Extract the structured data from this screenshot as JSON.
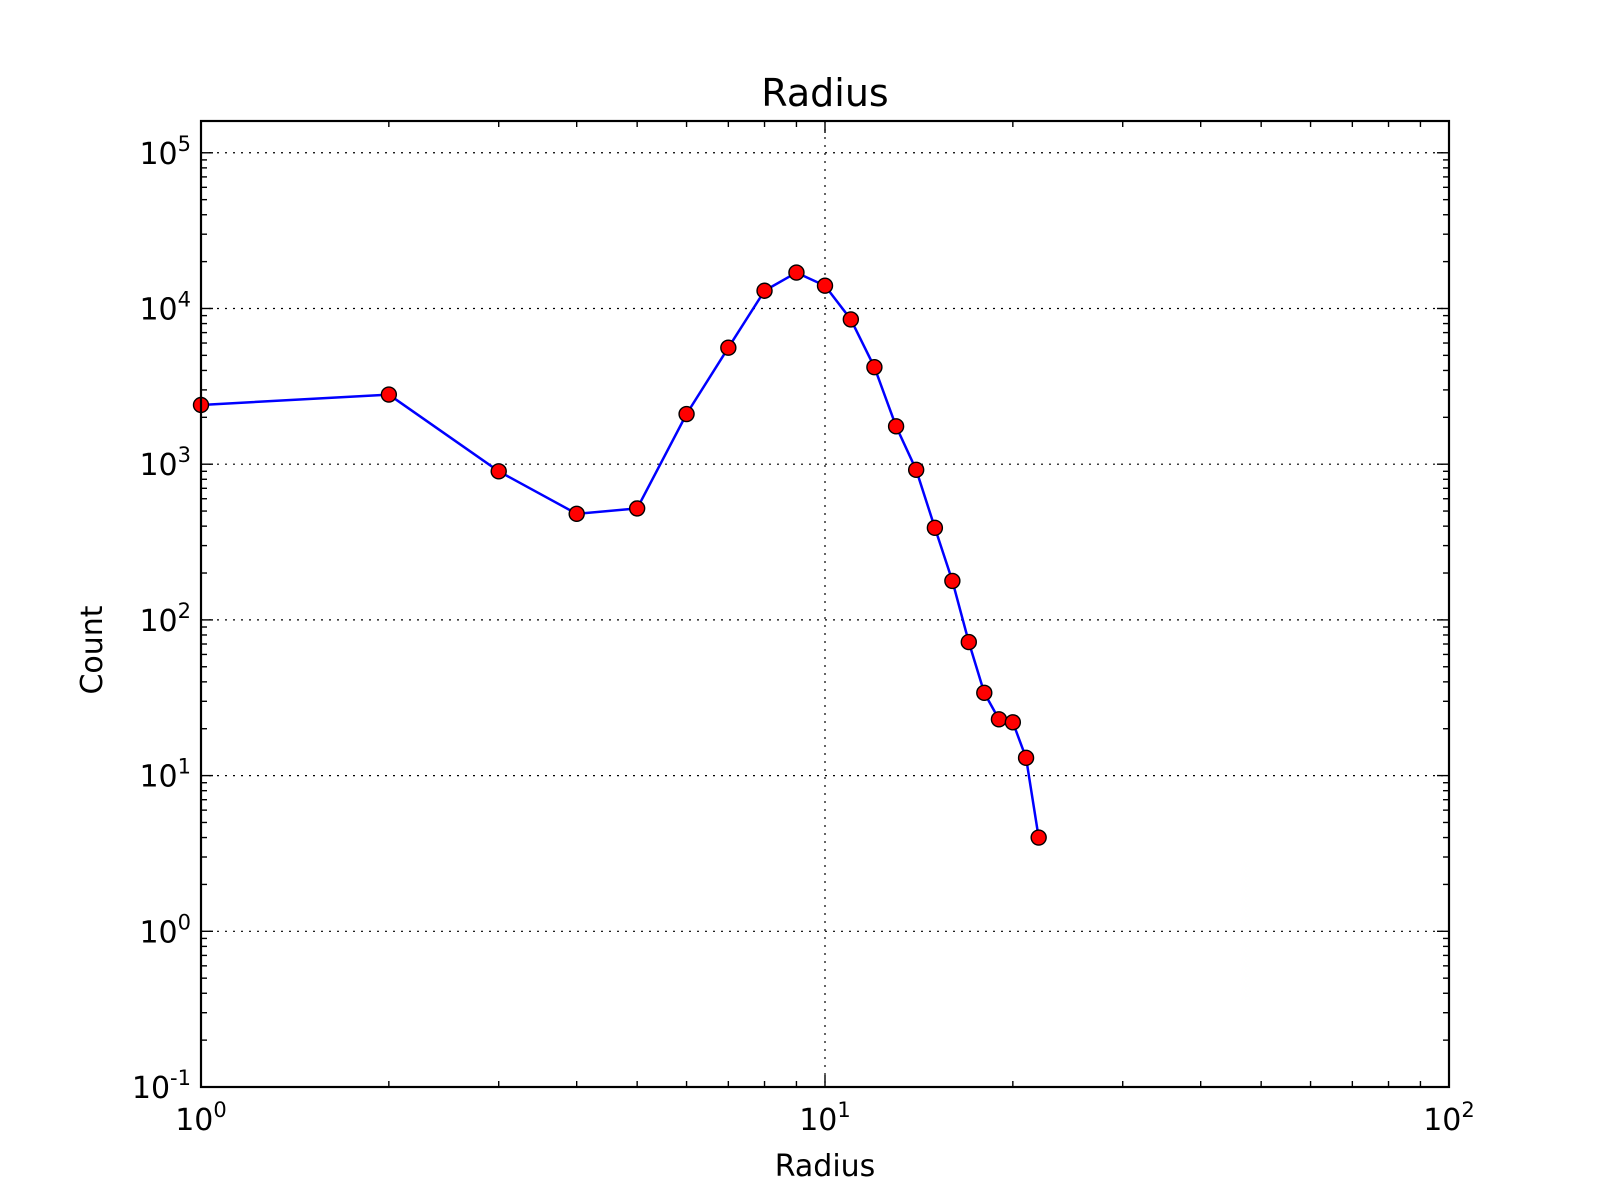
{
  "chart_data": {
    "type": "line",
    "title": "Radius",
    "xlabel": "Radius",
    "ylabel": "Count",
    "x_scale": "log",
    "y_scale": "log",
    "xlim": [
      1,
      100
    ],
    "ylim": [
      0.1,
      160000
    ],
    "grid": true,
    "x_ticks": [
      {
        "value": 1,
        "base": "10",
        "exp": "0"
      },
      {
        "value": 10,
        "base": "10",
        "exp": "1"
      },
      {
        "value": 100,
        "base": "10",
        "exp": "2"
      }
    ],
    "y_ticks": [
      {
        "value": 0.1,
        "base": "10",
        "exp": "-1"
      },
      {
        "value": 1,
        "base": "10",
        "exp": "0"
      },
      {
        "value": 10,
        "base": "10",
        "exp": "1"
      },
      {
        "value": 100,
        "base": "10",
        "exp": "2"
      },
      {
        "value": 1000,
        "base": "10",
        "exp": "3"
      },
      {
        "value": 10000,
        "base": "10",
        "exp": "4"
      },
      {
        "value": 100000,
        "base": "10",
        "exp": "5"
      }
    ],
    "series": [
      {
        "line_color": "#0000ff",
        "marker_color": "#ff0000",
        "x": [
          1,
          2,
          3,
          4,
          5,
          6,
          7,
          8,
          9,
          10,
          11,
          12,
          13,
          14,
          15,
          16,
          17,
          18,
          19,
          20,
          21,
          22
        ],
        "y": [
          2400,
          2800,
          900,
          480,
          520,
          2100,
          5600,
          13000,
          17000,
          14000,
          8500,
          4200,
          1750,
          920,
          390,
          178,
          72,
          34,
          23,
          22,
          13,
          4
        ]
      }
    ]
  }
}
